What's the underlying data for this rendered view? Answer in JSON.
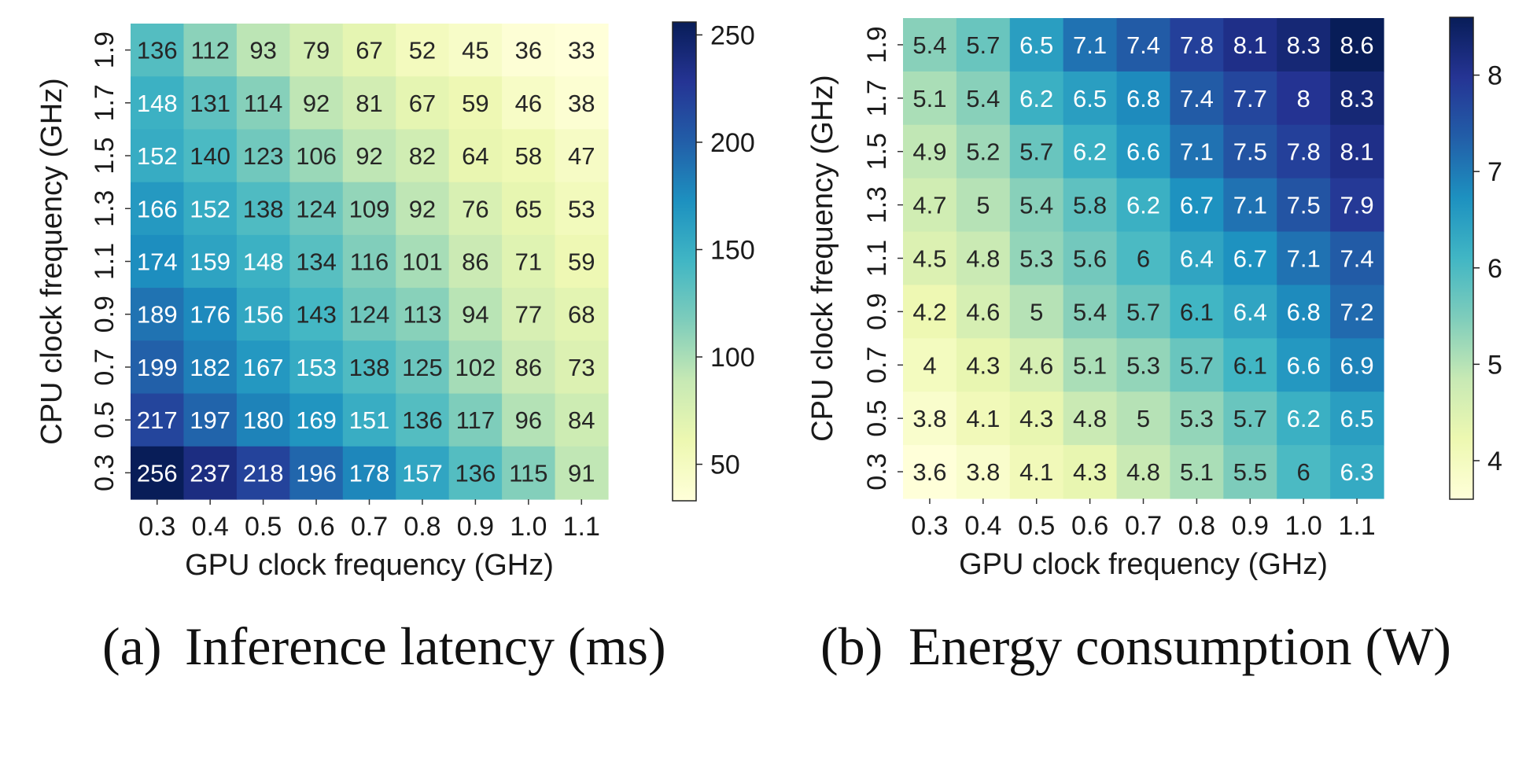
{
  "colors": {
    "colormap": [
      "#ffffd9",
      "#edf8b1",
      "#c7e9b4",
      "#7fcdbb",
      "#41b6c4",
      "#1d91c0",
      "#225ea8",
      "#253494",
      "#081d58"
    ],
    "dark_text": "#262626",
    "light_text": "#ffffff"
  },
  "chart_data": [
    {
      "type": "heatmap",
      "caption_label": "(a)",
      "caption_text": "Inference latency (ms)",
      "xlabel": "GPU clock frequency (GHz)",
      "ylabel": "CPU clock frequency (GHz)",
      "x": [
        "0.3",
        "0.4",
        "0.5",
        "0.6",
        "0.7",
        "0.8",
        "0.9",
        "1.0",
        "1.1"
      ],
      "y": [
        "1.9",
        "1.7",
        "1.5",
        "1.3",
        "1.1",
        "0.9",
        "0.7",
        "0.5",
        "0.3"
      ],
      "values": [
        [
          136,
          112,
          93,
          79,
          67,
          52,
          45,
          36,
          33
        ],
        [
          148,
          131,
          114,
          92,
          81,
          67,
          59,
          46,
          38
        ],
        [
          152,
          140,
          123,
          106,
          92,
          82,
          64,
          58,
          47
        ],
        [
          166,
          152,
          138,
          124,
          109,
          92,
          76,
          65,
          53
        ],
        [
          174,
          159,
          148,
          134,
          116,
          101,
          86,
          71,
          59
        ],
        [
          189,
          176,
          156,
          143,
          124,
          113,
          94,
          77,
          68
        ],
        [
          199,
          182,
          167,
          153,
          138,
          125,
          102,
          86,
          73
        ],
        [
          217,
          197,
          180,
          169,
          151,
          136,
          117,
          96,
          84
        ],
        [
          256,
          237,
          218,
          196,
          178,
          157,
          136,
          115,
          91
        ]
      ],
      "vmin": 33,
      "vmax": 256,
      "colorbar_ticks": [
        50,
        100,
        150,
        200,
        250
      ]
    },
    {
      "type": "heatmap",
      "caption_label": "(b)",
      "caption_text": "Energy consumption (W)",
      "xlabel": "GPU clock frequency (GHz)",
      "ylabel": "CPU clock frequency (GHz)",
      "x": [
        "0.3",
        "0.4",
        "0.5",
        "0.6",
        "0.7",
        "0.8",
        "0.9",
        "1.0",
        "1.1"
      ],
      "y": [
        "1.9",
        "1.7",
        "1.5",
        "1.3",
        "1.1",
        "0.9",
        "0.7",
        "0.5",
        "0.3"
      ],
      "values": [
        [
          5.4,
          5.7,
          6.5,
          7.1,
          7.4,
          7.8,
          8.1,
          8.3,
          8.6
        ],
        [
          5.1,
          5.4,
          6.2,
          6.5,
          6.8,
          7.4,
          7.7,
          8,
          8.3
        ],
        [
          4.9,
          5.2,
          5.7,
          6.2,
          6.6,
          7.1,
          7.5,
          7.8,
          8.1
        ],
        [
          4.7,
          5,
          5.4,
          5.8,
          6.2,
          6.7,
          7.1,
          7.5,
          7.9
        ],
        [
          4.5,
          4.8,
          5.3,
          5.6,
          6,
          6.4,
          6.7,
          7.1,
          7.4
        ],
        [
          4.2,
          4.6,
          5,
          5.4,
          5.7,
          6.1,
          6.4,
          6.8,
          7.2
        ],
        [
          4,
          4.3,
          4.6,
          5.1,
          5.3,
          5.7,
          6.1,
          6.6,
          6.9
        ],
        [
          3.8,
          4.1,
          4.3,
          4.8,
          5,
          5.3,
          5.7,
          6.2,
          6.5
        ],
        [
          3.6,
          3.8,
          4.1,
          4.3,
          4.8,
          5.1,
          5.5,
          6,
          6.3
        ]
      ],
      "vmin": 3.6,
      "vmax": 8.6,
      "colorbar_ticks": [
        4,
        5,
        6,
        7,
        8
      ]
    }
  ]
}
